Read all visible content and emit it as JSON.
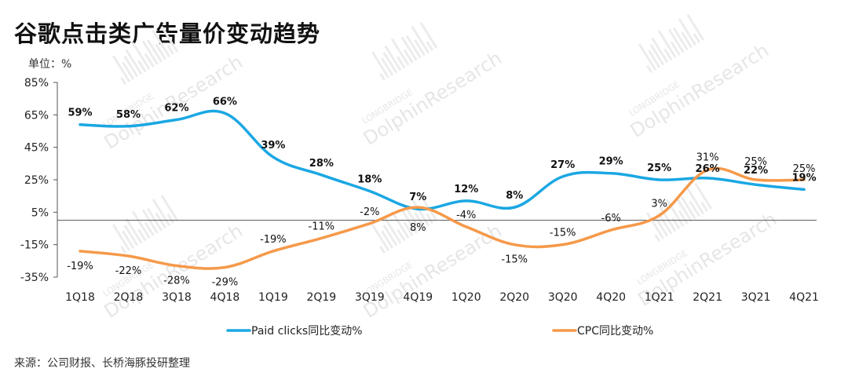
{
  "title": "谷歌点击类广告量价变动趋势",
  "unit": "单位：%",
  "source": "来源：公司财报、长桥海豚投研整理",
  "watermark": {
    "line1": "LONGBRIDGE",
    "line2": "DolphinResearch"
  },
  "colors": {
    "paid_clicks": "#1aa7e3",
    "cpc": "#f5994a",
    "axis": "#555555",
    "text": "#222222"
  },
  "chart_data": {
    "type": "line",
    "categories": [
      "1Q18",
      "2Q18",
      "3Q18",
      "4Q18",
      "1Q19",
      "2Q19",
      "3Q19",
      "4Q19",
      "1Q20",
      "2Q20",
      "3Q20",
      "4Q20",
      "1Q21",
      "2Q21",
      "3Q21",
      "4Q21"
    ],
    "y_ticks": [
      "85%",
      "65%",
      "45%",
      "25%",
      "5%",
      "-15%",
      "-35%"
    ],
    "y_tick_values": [
      85,
      65,
      45,
      25,
      5,
      -15,
      -35
    ],
    "ylim": [
      -35,
      85
    ],
    "series": [
      {
        "name": "Paid clicks同比变动%",
        "color_key": "paid_clicks",
        "values": [
          59,
          58,
          62,
          66,
          39,
          28,
          18,
          7,
          12,
          8,
          27,
          29,
          25,
          26,
          22,
          19
        ],
        "labels": [
          "59%",
          "58%",
          "62%",
          "66%",
          "39%",
          "28%",
          "18%",
          "7%",
          "12%",
          "8%",
          "27%",
          "29%",
          "25%",
          "26%",
          "22%",
          "19%"
        ]
      },
      {
        "name": "CPC同比变动%",
        "color_key": "cpc",
        "values": [
          -19,
          -22,
          -28,
          -29,
          -19,
          -11,
          -2,
          8,
          -4,
          -15,
          -15,
          -6,
          3,
          31,
          25,
          25
        ],
        "labels": [
          "-19%",
          "-22%",
          "-28%",
          "-29%",
          "-19%",
          "-11%",
          "-2%",
          "8%",
          "-4%",
          "-15%",
          "-15%",
          "-6%",
          "3%",
          "31%",
          "25%",
          "25%"
        ]
      }
    ]
  }
}
